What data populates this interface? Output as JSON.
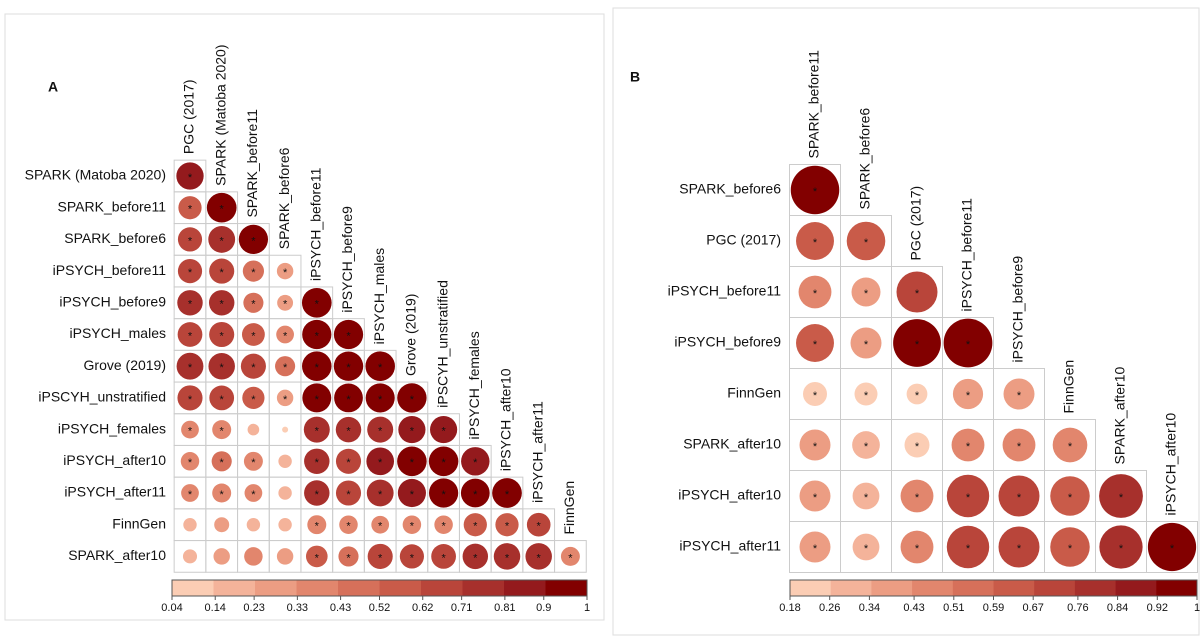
{
  "chart_data": [
    {
      "type": "correlation",
      "panel_label": "A",
      "col_labels": [
        "PGC (2017)",
        "SPARK (Matoba 2020)",
        "SPARK_before11",
        "SPARK_before6",
        "iPSYCH_before11",
        "iPSYCH_before9",
        "iPSYCH_males",
        "Grove (2019)",
        "iPSCYH_unstratified",
        "iPSYCH_females",
        "iPSYCH_after10",
        "iPSYCH_after11",
        "FinnGen"
      ],
      "row_labels": [
        "SPARK (Matoba 2020)",
        "SPARK_before11",
        "SPARK_before6",
        "iPSYCH_before11",
        "iPSYCH_before9",
        "iPSYCH_males",
        "Grove (2019)",
        "iPSCYH_unstratified",
        "iPSYCH_females",
        "iPSYCH_after10",
        "iPSYCH_after11",
        "FinnGen",
        "SPARK_after10"
      ],
      "values": [
        [
          0.83
        ],
        [
          0.6,
          0.98
        ],
        [
          0.65,
          0.8,
          0.95
        ],
        [
          0.65,
          0.7,
          0.5,
          0.3
        ],
        [
          0.72,
          0.72,
          0.45,
          0.28,
          0.98
        ],
        [
          0.68,
          0.7,
          0.58,
          0.35,
          0.95,
          0.95
        ],
        [
          0.8,
          0.78,
          0.7,
          0.45,
          0.97,
          0.96,
          0.97
        ],
        [
          0.7,
          0.68,
          0.55,
          0.3,
          0.93,
          0.92,
          0.94,
          0.96
        ],
        [
          0.35,
          0.4,
          0.15,
          0.04,
          0.75,
          0.72,
          0.75,
          0.82,
          0.82
        ],
        [
          0.38,
          0.45,
          0.4,
          0.2,
          0.72,
          0.7,
          0.85,
          0.97,
          0.97,
          0.9
        ],
        [
          0.35,
          0.4,
          0.35,
          0.2,
          0.72,
          0.7,
          0.8,
          0.88,
          0.95,
          0.92,
          0.98
        ],
        [
          0.2,
          0.25,
          0.2,
          0.2,
          0.4,
          0.38,
          0.35,
          0.38,
          0.38,
          0.6,
          0.6,
          0.62
        ],
        [
          0.22,
          0.3,
          0.38,
          0.3,
          0.52,
          0.45,
          0.7,
          0.65,
          0.68,
          0.72,
          0.78,
          0.78,
          0.4
        ]
      ],
      "cell_labels": [
        [
          "*"
        ],
        [
          "*",
          "*"
        ],
        [
          "*",
          "*",
          "*"
        ],
        [
          "*",
          "*",
          "*",
          "*"
        ],
        [
          "*",
          "*",
          "*",
          "*",
          "*"
        ],
        [
          "*",
          "*",
          "*",
          "*",
          "*",
          "*"
        ],
        [
          "*",
          "*",
          "*",
          "*",
          "*",
          "*",
          "*"
        ],
        [
          "*",
          "*",
          "*",
          "*",
          "*",
          "*",
          "*",
          "*"
        ],
        [
          "*",
          "*",
          null,
          null,
          "*",
          "*",
          "*",
          "*",
          "*"
        ],
        [
          "*",
          "*",
          "*",
          null,
          "*",
          "*",
          "*",
          "*",
          "*",
          "*"
        ],
        [
          "*",
          "*",
          "*",
          null,
          "*",
          "*",
          "*",
          "*",
          "*",
          "*",
          "*"
        ],
        [
          null,
          null,
          null,
          null,
          "*",
          "*",
          "*",
          "*",
          "*",
          "*",
          "*",
          "*"
        ],
        [
          null,
          null,
          null,
          null,
          "*",
          "*",
          "*",
          "*",
          "*",
          "*",
          "*",
          "*",
          "*"
        ]
      ],
      "clim": [
        0.04,
        1
      ],
      "cticks": [
        0.04,
        0.14,
        0.23,
        0.33,
        0.43,
        0.52,
        0.62,
        0.71,
        0.81,
        0.9,
        1
      ],
      "colormap": [
        "#fbcdb4",
        "#f4b39a",
        "#ec9d83",
        "#e2866d",
        "#d6705a",
        "#c95b49",
        "#b9453a",
        "#a7302c",
        "#941a1d",
        "#820000"
      ]
    },
    {
      "type": "correlation",
      "panel_label": "B",
      "col_labels": [
        "SPARK_before11",
        "SPARK_before6",
        "PGC (2017)",
        "iPSYCH_before11",
        "iPSYCH_before9",
        "FinnGen",
        "SPARK_after10",
        "iPSYCH_after10"
      ],
      "row_labels": [
        "SPARK_before6",
        "PGC (2017)",
        "iPSYCH_before11",
        "iPSYCH_before9",
        "FinnGen",
        "SPARK_after10",
        "iPSYCH_after10",
        "iPSYCH_after11"
      ],
      "values": [
        [
          0.98
        ],
        [
          0.6,
          0.62
        ],
        [
          0.45,
          0.35,
          0.7
        ],
        [
          0.6,
          0.4,
          0.95,
          0.99
        ],
        [
          0.24,
          0.22,
          0.18,
          0.38,
          0.4
        ],
        [
          0.4,
          0.32,
          0.26,
          0.45,
          0.45,
          0.5
        ],
        [
          0.4,
          0.3,
          0.45,
          0.75,
          0.7,
          0.65,
          0.8
        ],
        [
          0.4,
          0.3,
          0.45,
          0.75,
          0.7,
          0.65,
          0.78,
          0.97
        ]
      ],
      "cell_labels": [
        [
          "*"
        ],
        [
          "*",
          "*"
        ],
        [
          "*",
          "*",
          "*"
        ],
        [
          "*",
          "*",
          "*",
          "*"
        ],
        [
          "*",
          "*",
          "*",
          "*",
          "*"
        ],
        [
          "*",
          "*",
          "*",
          "*",
          "*",
          "*"
        ],
        [
          "*",
          "*",
          "*",
          "*",
          "*",
          "*",
          "*"
        ],
        [
          "*",
          "*",
          "*",
          "*",
          "*",
          "*",
          "*",
          "*"
        ]
      ],
      "clim": [
        0.18,
        1
      ],
      "cticks": [
        0.18,
        0.26,
        0.34,
        0.43,
        0.51,
        0.59,
        0.67,
        0.76,
        0.84,
        0.92,
        1
      ],
      "colormap": [
        "#fbcdb4",
        "#f4b39a",
        "#ec9d83",
        "#e2866d",
        "#d6705a",
        "#c95b49",
        "#b9453a",
        "#a7302c",
        "#941a1d",
        "#820000"
      ]
    }
  ]
}
